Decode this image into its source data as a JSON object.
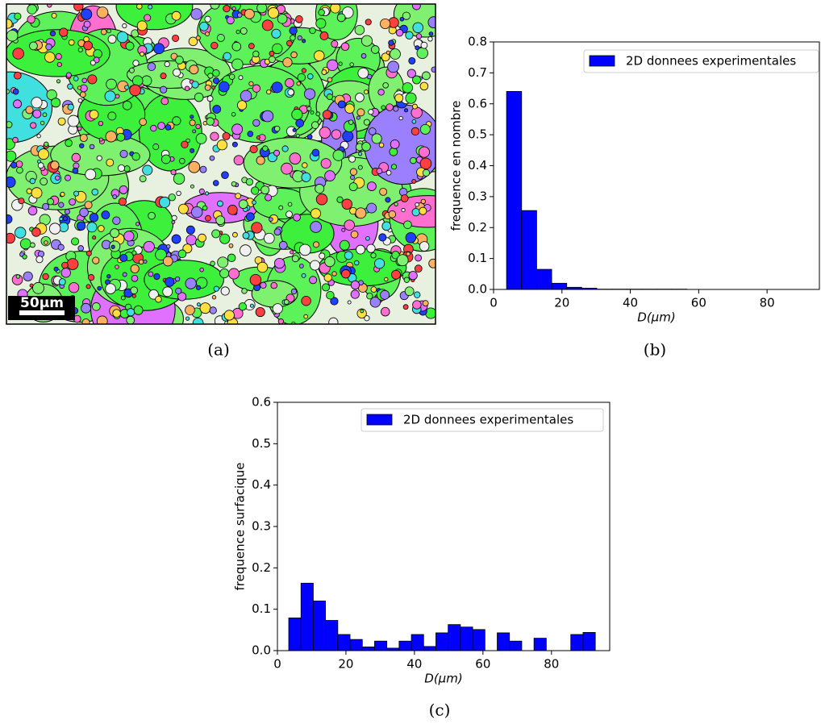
{
  "image_panel": {
    "scale_bar": "50μm",
    "caption": "(a)"
  },
  "chart_data": [
    {
      "type": "histogram",
      "caption": "(b)",
      "xlabel": "D(μm)",
      "ylabel": "frequence en nombre",
      "series": [
        {
          "name": "2D donnees experimentales",
          "color": "#0000ff",
          "bins": [
            3.8,
            8.2,
            12.6,
            17,
            21.4,
            25.8,
            30.2,
            34.6,
            39,
            43.4,
            47.8,
            52.2,
            56.6
          ],
          "values": [
            0.64,
            0.255,
            0.065,
            0.02,
            0.007,
            0.004,
            0.001,
            0.001,
            0.001,
            0.001,
            0.001,
            0.001
          ]
        }
      ],
      "xlim": [
        0,
        95.3
      ],
      "ylim": [
        0,
        0.8
      ],
      "xticks": [
        0,
        20,
        40,
        60,
        80
      ],
      "yticks": [
        {
          "value": 0,
          "label": "0.0"
        },
        0.1,
        0.2,
        0.3,
        0.4,
        0.5,
        0.6,
        0.7,
        0.8
      ],
      "legend": "upper right",
      "grid": false
    },
    {
      "type": "histogram",
      "caption": "(c)",
      "xlabel": "D(μm)",
      "ylabel": "frequence surfacique",
      "series": [
        {
          "name": "2D donnees experimentales",
          "color": "#0000ff",
          "bins": [
            3.3,
            6.88,
            10.46,
            14.04,
            17.62,
            21.2,
            24.78,
            28.36,
            31.94,
            35.52,
            39.1,
            42.68,
            46.26,
            49.84,
            53.42,
            57.0,
            60.58,
            64.16,
            67.74,
            71.32,
            74.9,
            78.48,
            82.06,
            85.64,
            89.22,
            92.8
          ],
          "values": [
            0.079,
            0.163,
            0.12,
            0.073,
            0.039,
            0.027,
            0.009,
            0.023,
            0.006,
            0.023,
            0.039,
            0.01,
            0.043,
            0.063,
            0.057,
            0.051,
            0,
            0.043,
            0.023,
            0,
            0.03,
            0,
            0,
            0.039,
            0.044
          ]
        }
      ],
      "xlim": [
        0,
        97
      ],
      "ylim": [
        0,
        0.6
      ],
      "xticks": [
        0,
        20,
        40,
        60,
        80
      ],
      "yticks": [
        {
          "value": 0,
          "label": "0.0"
        },
        0.1,
        0.2,
        0.3,
        0.4,
        0.5,
        0.6
      ],
      "legend": "upper right",
      "grid": false
    }
  ]
}
